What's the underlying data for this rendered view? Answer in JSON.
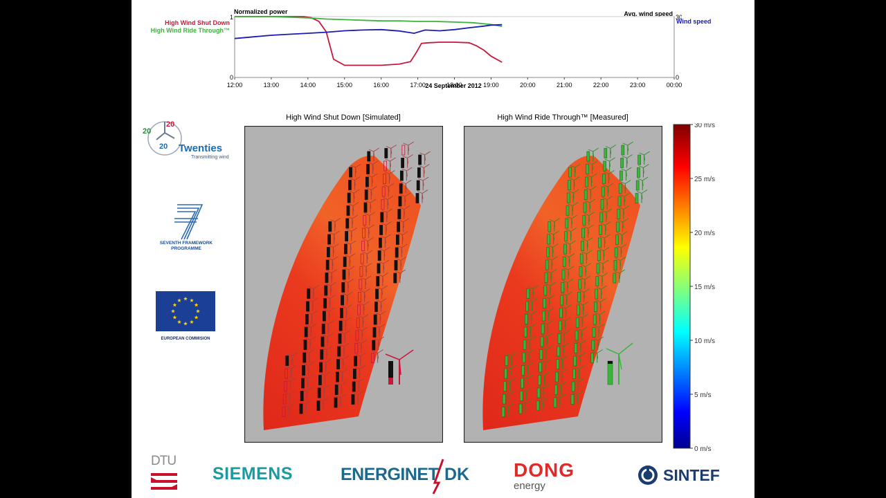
{
  "colors": {
    "shutdown": "#c8183a",
    "ridethrough": "#3cb43c",
    "windspeed": "#1a1ab4",
    "siemens": "#1a9ba1",
    "energinet": "#1b6a8e",
    "dong": "#e02a2a",
    "dtu": "#c8102e"
  },
  "chart_data": {
    "type": "line",
    "title_left": "Normalized power",
    "title_right": "Avg. wind speed",
    "xlabel": "24 September 2012",
    "x_ticks": [
      "12:00",
      "13:00",
      "14:00",
      "15:00",
      "16:00",
      "17:00",
      "18:00",
      "19:00",
      "20:00",
      "21:00",
      "22:00",
      "23:00",
      "00:00"
    ],
    "x_range_hours": [
      12,
      24
    ],
    "y_left_range": [
      0,
      1
    ],
    "y_left_ticks": [
      "0",
      "1"
    ],
    "y_right_range": [
      0,
      30
    ],
    "y_right_ticks": [
      "0",
      "30"
    ],
    "series": [
      {
        "name": "High Wind Shut Down",
        "axis": "left",
        "color": "#c8183a",
        "x": [
          12.0,
          12.5,
          13.0,
          13.5,
          13.9,
          14.1,
          14.3,
          14.5,
          14.7,
          15.0,
          15.5,
          16.0,
          16.5,
          16.8,
          16.95,
          17.1,
          17.3,
          17.6,
          18.0,
          18.4,
          18.6,
          18.8,
          19.0,
          19.3
        ],
        "y": [
          1.0,
          1.0,
          1.0,
          1.0,
          1.0,
          0.98,
          0.92,
          0.75,
          0.3,
          0.2,
          0.2,
          0.2,
          0.22,
          0.26,
          0.4,
          0.56,
          0.57,
          0.58,
          0.58,
          0.57,
          0.52,
          0.45,
          0.35,
          0.25
        ]
      },
      {
        "name": "High Wind Ride Through™",
        "axis": "left",
        "color": "#3cb43c",
        "x": [
          12.0,
          12.5,
          13.0,
          13.5,
          14.0,
          14.5,
          15.0,
          15.5,
          16.0,
          16.5,
          17.0,
          17.5,
          18.0,
          18.5,
          19.0,
          19.3
        ],
        "y": [
          1.0,
          1.0,
          1.0,
          0.99,
          0.98,
          0.96,
          0.95,
          0.94,
          0.93,
          0.93,
          0.92,
          0.92,
          0.91,
          0.9,
          0.87,
          0.84
        ]
      },
      {
        "name": "Wind speed",
        "axis": "right",
        "color": "#1a1ab4",
        "x": [
          12.0,
          12.5,
          13.0,
          13.5,
          14.0,
          14.5,
          15.0,
          15.5,
          16.0,
          16.5,
          16.9,
          17.2,
          17.6,
          18.0,
          18.4,
          18.8,
          19.0,
          19.3
        ],
        "y": [
          19.2,
          20.0,
          20.8,
          21.3,
          21.8,
          22.3,
          23.0,
          23.4,
          23.6,
          22.9,
          21.8,
          23.4,
          23.0,
          23.6,
          24.5,
          25.3,
          25.8,
          26.0
        ]
      }
    ],
    "colorbar": {
      "ticks": [
        "0 m/s",
        "5 m/s",
        "10 m/s",
        "15 m/s",
        "20 m/s",
        "25 m/s",
        "30 m/s"
      ],
      "range": [
        0,
        30
      ]
    }
  },
  "chart": {
    "legend_shutdown": "High Wind Shut Down",
    "legend_ridethrough": "High Wind Ride Through™",
    "legend_windspeed": "Wind speed"
  },
  "maps": {
    "left_title": "High Wind Shut Down [Simulated]",
    "right_title": "High Wind Ride Through™ [Measured]"
  },
  "logos": {
    "twenties_top": "20",
    "twenties_top2": "20",
    "twenties_bottom": "20",
    "twenties_name": "Twenties",
    "twenties_tag": "Transmitting wind",
    "fp7_line1": "SEVENTH FRAMEWORK",
    "fp7_line2": "PROGRAMME",
    "eu_caption": "EUROPEAN COMMISION",
    "dtu": "DTU",
    "siemens": "SIEMENS",
    "energinet": "ENERGINET",
    "energinet_suffix": "DK",
    "dong_main": "DONG",
    "dong_sub": "energy",
    "sintef": "SINTEF"
  }
}
